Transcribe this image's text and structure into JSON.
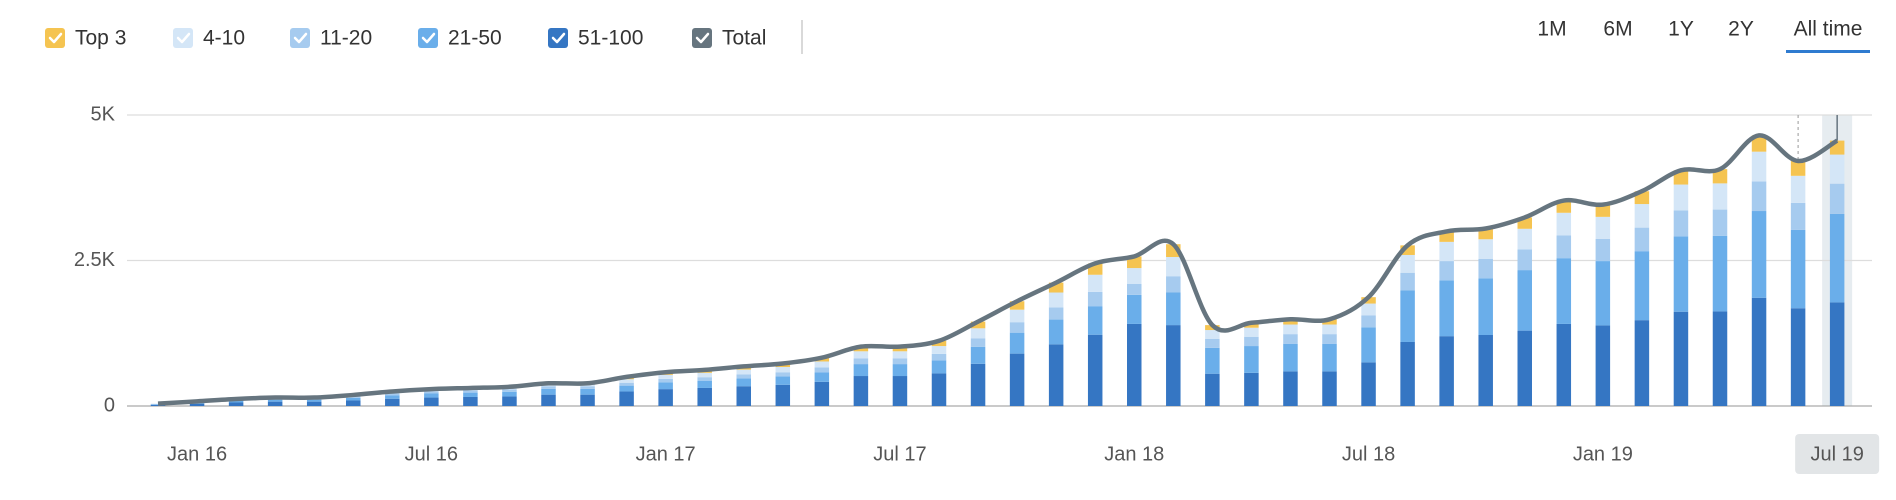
{
  "chart_data": {
    "type": "bar",
    "stacked": true,
    "categories": [
      null,
      "Jan 16",
      null,
      null,
      null,
      null,
      null,
      "Jul 16",
      null,
      null,
      null,
      null,
      null,
      "Jan 17",
      null,
      null,
      null,
      null,
      null,
      "Jul 17",
      null,
      null,
      null,
      null,
      null,
      "Jan 18",
      null,
      null,
      null,
      null,
      null,
      "Jul 18",
      null,
      null,
      null,
      null,
      null,
      "Jan 19",
      null,
      null,
      null,
      null,
      null,
      "Jul 19"
    ],
    "series": [
      {
        "name": "51-100",
        "color": "#3576c3",
        "values": [
          20,
          40,
          60,
          75,
          75,
          95,
          125,
          145,
          155,
          165,
          195,
          195,
          250,
          290,
          310,
          340,
          365,
          415,
          515,
          515,
          560,
          725,
          900,
          1060,
          1225,
          1410,
          1390,
          555,
          570,
          595,
          595,
          750,
          1100,
          1200,
          1220,
          1295,
          1410,
          1385,
          1475,
          1620,
          1625,
          1860,
          1680,
          1780
        ]
      },
      {
        "name": "21-50",
        "color": "#6aaeea",
        "values": [
          10,
          20,
          30,
          35,
          35,
          45,
          60,
          70,
          75,
          80,
          100,
          100,
          100,
          115,
          125,
          135,
          145,
          165,
          205,
          205,
          225,
          290,
          360,
          425,
          490,
          500,
          560,
          445,
          460,
          475,
          475,
          600,
          885,
          960,
          975,
          1040,
          1130,
          1105,
          1185,
          1295,
          1300,
          1490,
          1345,
          1520
        ]
      },
      {
        "name": "11-20",
        "color": "#a6cbef",
        "values": [
          5,
          10,
          15,
          15,
          15,
          25,
          30,
          35,
          40,
          40,
          45,
          45,
          50,
          60,
          60,
          70,
          70,
          85,
          100,
          100,
          110,
          145,
          180,
          210,
          245,
          190,
          280,
          155,
          160,
          165,
          165,
          205,
          305,
          330,
          335,
          355,
          390,
          380,
          405,
          445,
          450,
          510,
          465,
          520
        ]
      },
      {
        "name": "4-10",
        "color": "#d4e6f7",
        "values": [
          5,
          10,
          10,
          15,
          15,
          20,
          25,
          30,
          30,
          35,
          40,
          40,
          60,
          70,
          75,
          80,
          90,
          100,
          120,
          120,
          135,
          175,
          215,
          255,
          295,
          270,
          330,
          150,
          155,
          165,
          165,
          205,
          305,
          330,
          335,
          355,
          390,
          380,
          405,
          445,
          450,
          510,
          465,
          500
        ]
      },
      {
        "name": "Top 3",
        "color": "#f5c451",
        "values": [
          0,
          0,
          5,
          5,
          5,
          5,
          10,
          10,
          10,
          10,
          10,
          10,
          40,
          45,
          50,
          55,
          60,
          65,
          80,
          80,
          90,
          115,
          145,
          170,
          195,
          200,
          220,
          85,
          85,
          90,
          90,
          110,
          165,
          180,
          185,
          195,
          210,
          210,
          220,
          245,
          245,
          280,
          255,
          240
        ]
      }
    ],
    "legend_order": [
      4,
      3,
      2,
      1,
      0
    ],
    "total": {
      "name": "Total",
      "color": "#66757f",
      "values": [
        40,
        80,
        120,
        145,
        145,
        190,
        250,
        290,
        310,
        330,
        390,
        390,
        500,
        580,
        620,
        680,
        730,
        830,
        1020,
        1020,
        1120,
        1450,
        1800,
        2120,
        2450,
        2570,
        2780,
        1390,
        1430,
        1490,
        1490,
        1870,
        2760,
        3000,
        3050,
        3240,
        3530,
        3460,
        3690,
        4050,
        4070,
        4650,
        4210,
        4560
      ]
    },
    "ylim": [
      0,
      5000
    ],
    "yticks": [
      0,
      {
        "value": 2500,
        "label": "2.5K"
      },
      {
        "value": 5000,
        "label": "5K"
      }
    ],
    "grid": true,
    "highlight_index": 43,
    "periods": [
      "1M",
      "6M",
      "1Y",
      "2Y",
      "All time"
    ],
    "active_period": 4
  }
}
